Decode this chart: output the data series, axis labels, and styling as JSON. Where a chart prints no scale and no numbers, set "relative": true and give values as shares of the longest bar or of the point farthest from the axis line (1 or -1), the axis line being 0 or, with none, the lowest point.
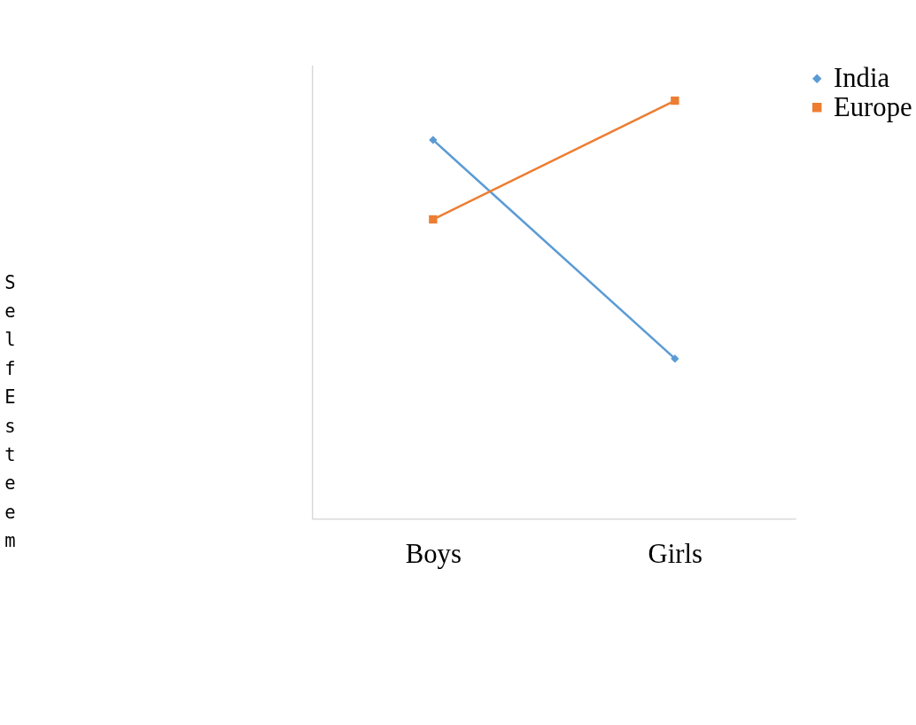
{
  "chart_data": {
    "type": "line",
    "relative": true,
    "ylabel": "Self Esteem",
    "categories": [
      "Boys",
      "Girls"
    ],
    "legend": "right",
    "grid": false,
    "series": [
      {
        "name": "India",
        "color": "#5b9bd5",
        "marker": "diamond",
        "values": [
          0.906,
          0.383
        ]
      },
      {
        "name": "Europe",
        "color": "#ed7d31",
        "marker": "square",
        "values": [
          0.716,
          1
        ]
      }
    ]
  }
}
